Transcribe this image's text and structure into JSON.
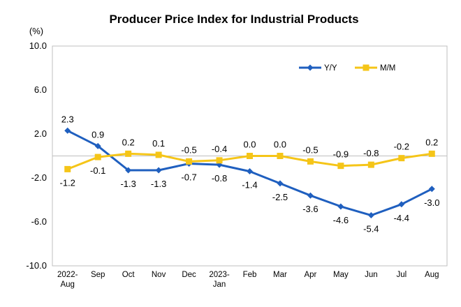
{
  "chart_data": {
    "type": "line",
    "title": "Producer Price Index for Industrial Products",
    "ylabel": "(%)",
    "xlabel": "",
    "ylim": [
      -10.0,
      10.0
    ],
    "yticks": [
      "10.0",
      "6.0",
      "2.0",
      "-2.0",
      "-6.0",
      "-10.0"
    ],
    "ytick_values": [
      10,
      6,
      2,
      -2,
      -6,
      -10
    ],
    "categories": [
      [
        "2022-",
        "Aug"
      ],
      [
        "Sep"
      ],
      [
        "Oct"
      ],
      [
        "Nov"
      ],
      [
        "Dec"
      ],
      [
        "2023-",
        "Jan"
      ],
      [
        "Feb"
      ],
      [
        "Mar"
      ],
      [
        "Apr"
      ],
      [
        "May"
      ],
      [
        "Jun"
      ],
      [
        "Jul"
      ],
      [
        "Aug"
      ]
    ],
    "legend_position": "top-right",
    "grid": false,
    "series": [
      {
        "name": "Y/Y",
        "color": "#1f5fbf",
        "marker": "diamond",
        "values": [
          2.3,
          0.9,
          -1.3,
          -1.3,
          -0.7,
          -0.8,
          -1.4,
          -2.5,
          -3.6,
          -4.6,
          -5.4,
          -4.4,
          -3.0
        ],
        "labels": [
          "2.3",
          "0.9",
          "-1.3",
          "-1.3",
          "-0.7",
          "-0.8",
          "-1.4",
          "-2.5",
          "-3.6",
          "-4.6",
          "-5.4",
          "-4.4",
          "-3.0"
        ]
      },
      {
        "name": "M/M",
        "color": "#f5c518",
        "marker": "square",
        "values": [
          -1.2,
          -0.1,
          0.2,
          0.1,
          -0.5,
          -0.4,
          0.0,
          0.0,
          -0.5,
          -0.9,
          -0.8,
          -0.2,
          0.2
        ],
        "labels": [
          "-1.2",
          "-0.1",
          "0.2",
          "0.1",
          "-0.5",
          "-0.4",
          "0.0",
          "0.0",
          "-0.5",
          "-0.9",
          "-0.8",
          "-0.2",
          "0.2"
        ]
      }
    ]
  }
}
